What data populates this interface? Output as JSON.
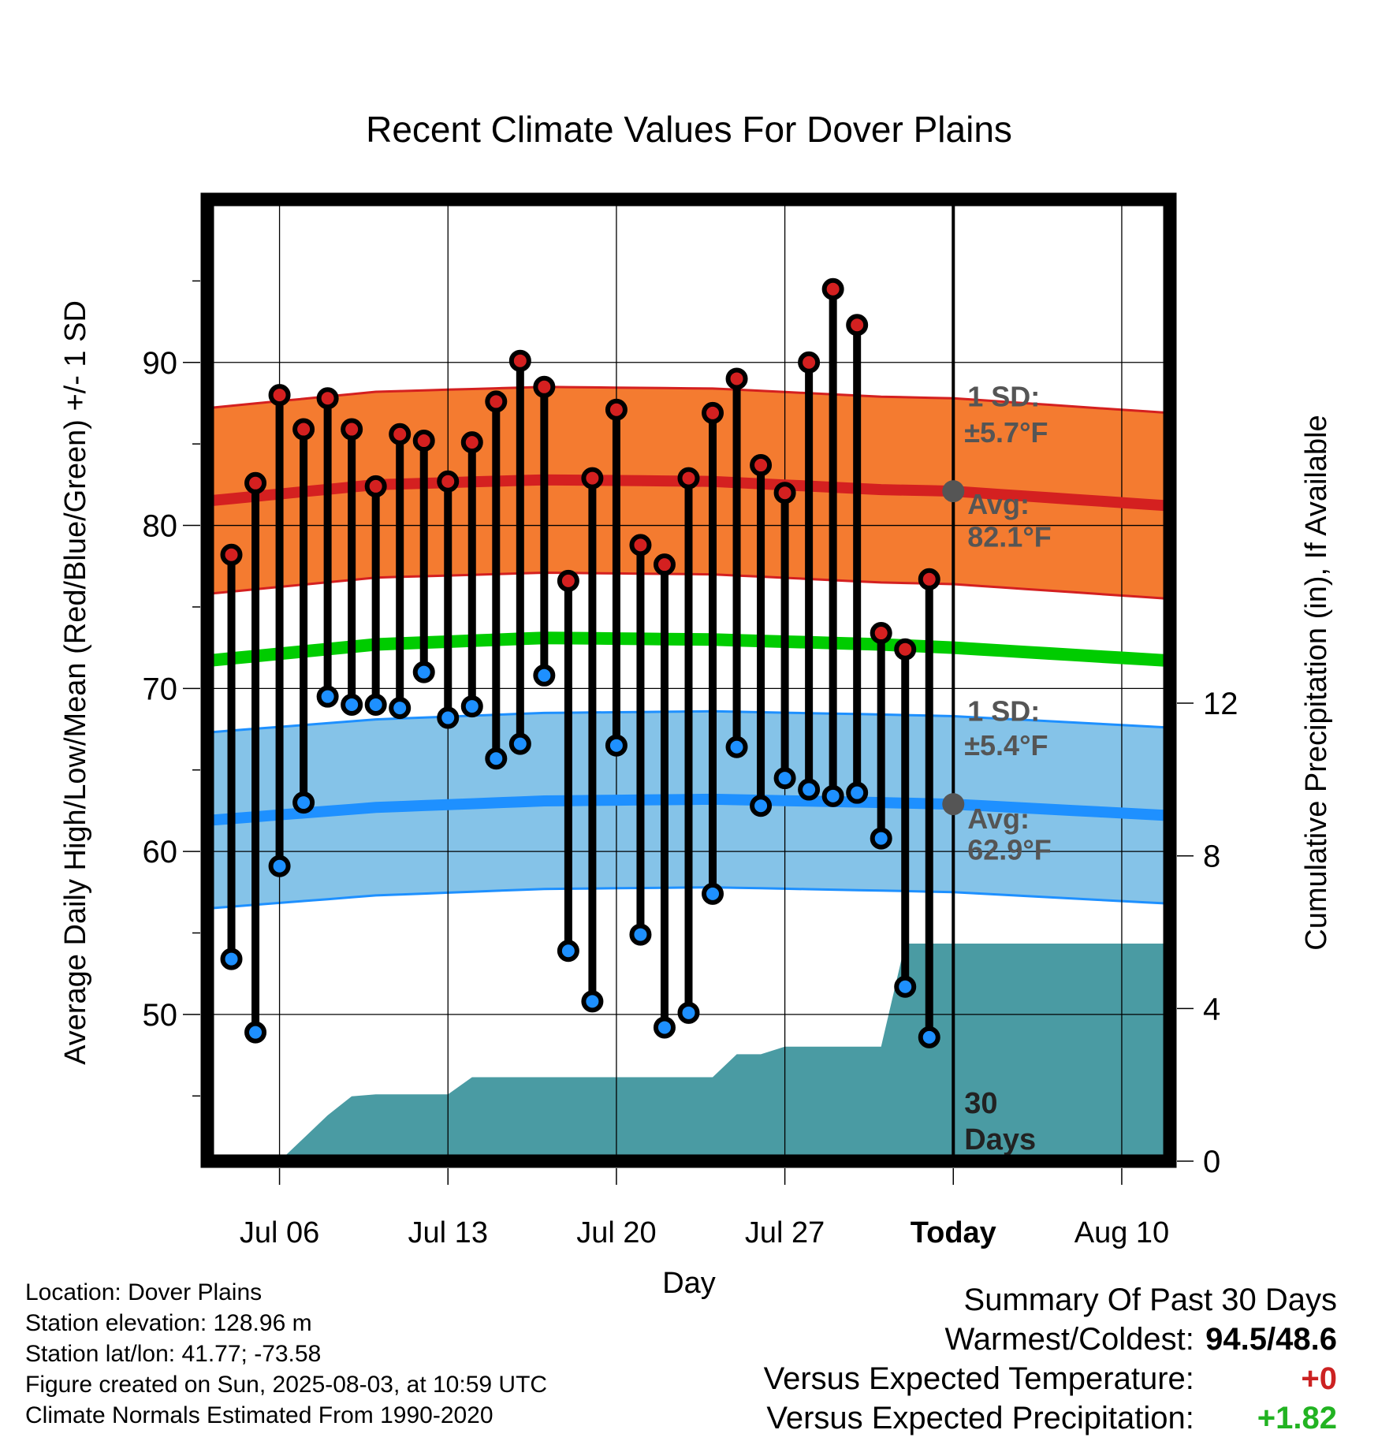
{
  "chart_data": {
    "type": "line",
    "title": "Recent Climate Values For Dover Plains",
    "xlabel": "Day",
    "ylabel_left": "Average Daily High/Low/Mean (Red/Blue/Green) +/- 1 SD",
    "ylabel_right": "Cumulative Precipitation (in), If Available",
    "x_tick_labels": [
      "Jul 06",
      "Jul 13",
      "Jul 20",
      "Jul 27",
      "Today",
      "Aug 10"
    ],
    "y_left_ticks": [
      50,
      60,
      70,
      80,
      90
    ],
    "y_left_range": [
      41,
      100
    ],
    "y_right_ticks": [
      0,
      4,
      8,
      12
    ],
    "y_right_range": [
      0,
      25.2
    ],
    "x_range": [
      "2025-07-03",
      "2025-08-12"
    ],
    "grid": true,
    "normal_high": {
      "dates": [
        "2025-07-03",
        "2025-07-10",
        "2025-07-17",
        "2025-07-24",
        "2025-07-31",
        "2025-08-03",
        "2025-08-12"
      ],
      "mean": [
        81.5,
        82.5,
        82.8,
        82.7,
        82.2,
        82.1,
        81.2
      ],
      "sd": 5.7,
      "sd_label": "1 SD:",
      "sd_value_label": "±5.7°F",
      "avg_label": "Avg:",
      "avg_value_label": "82.1°F"
    },
    "normal_low": {
      "dates": [
        "2025-07-03",
        "2025-07-10",
        "2025-07-17",
        "2025-07-24",
        "2025-07-31",
        "2025-08-03",
        "2025-08-12"
      ],
      "mean": [
        61.9,
        62.7,
        63.1,
        63.2,
        63.0,
        62.9,
        62.2
      ],
      "sd": 5.4,
      "sd_label": "1 SD:",
      "sd_value_label": "±5.4°F",
      "avg_label": "Avg:",
      "avg_value_label": "62.9°F"
    },
    "normal_mean": {
      "dates": [
        "2025-07-03",
        "2025-07-10",
        "2025-07-17",
        "2025-07-24",
        "2025-07-31",
        "2025-08-03",
        "2025-08-12"
      ],
      "values": [
        71.7,
        72.7,
        73.1,
        73.0,
        72.7,
        72.5,
        71.7
      ]
    },
    "daily_obs": [
      {
        "date": "2025-07-04",
        "high": 78.2,
        "low": 53.4
      },
      {
        "date": "2025-07-05",
        "high": 82.6,
        "low": 48.9
      },
      {
        "date": "2025-07-06",
        "high": 88.0,
        "low": 59.1
      },
      {
        "date": "2025-07-07",
        "high": 85.9,
        "low": 63.0
      },
      {
        "date": "2025-07-08",
        "high": 87.8,
        "low": 69.5
      },
      {
        "date": "2025-07-09",
        "high": 85.9,
        "low": 69.0
      },
      {
        "date": "2025-07-10",
        "high": 82.4,
        "low": 69.0
      },
      {
        "date": "2025-07-11",
        "high": 85.6,
        "low": 68.8
      },
      {
        "date": "2025-07-12",
        "high": 85.2,
        "low": 71.0
      },
      {
        "date": "2025-07-13",
        "high": 82.7,
        "low": 68.2
      },
      {
        "date": "2025-07-14",
        "high": 85.1,
        "low": 68.9
      },
      {
        "date": "2025-07-15",
        "high": 87.6,
        "low": 65.7
      },
      {
        "date": "2025-07-16",
        "high": 90.1,
        "low": 66.6
      },
      {
        "date": "2025-07-17",
        "high": 88.5,
        "low": 70.8
      },
      {
        "date": "2025-07-18",
        "high": 76.6,
        "low": 53.9
      },
      {
        "date": "2025-07-19",
        "high": 82.9,
        "low": 50.8
      },
      {
        "date": "2025-07-20",
        "high": 87.1,
        "low": 66.5
      },
      {
        "date": "2025-07-21",
        "high": 78.8,
        "low": 54.9
      },
      {
        "date": "2025-07-22",
        "high": 77.6,
        "low": 49.2
      },
      {
        "date": "2025-07-23",
        "high": 82.9,
        "low": 50.1
      },
      {
        "date": "2025-07-24",
        "high": 86.9,
        "low": 57.4
      },
      {
        "date": "2025-07-25",
        "high": 89.0,
        "low": 66.4
      },
      {
        "date": "2025-07-26",
        "high": 83.7,
        "low": 62.8
      },
      {
        "date": "2025-07-27",
        "high": 82.0,
        "low": 64.5
      },
      {
        "date": "2025-07-28",
        "high": 90.0,
        "low": 63.8
      },
      {
        "date": "2025-07-29",
        "high": 94.5,
        "low": 63.4
      },
      {
        "date": "2025-07-30",
        "high": 92.3,
        "low": 63.6
      },
      {
        "date": "2025-07-31",
        "high": 73.4,
        "low": 60.8
      },
      {
        "date": "2025-08-01",
        "high": 72.4,
        "low": 51.7
      },
      {
        "date": "2025-08-02",
        "high": 76.7,
        "low": 48.6
      }
    ],
    "cumulative_precip": [
      {
        "date": "2025-07-03",
        "value": 0.0
      },
      {
        "date": "2025-07-06",
        "value": 0.0
      },
      {
        "date": "2025-07-08",
        "value": 1.2
      },
      {
        "date": "2025-07-09",
        "value": 1.7
      },
      {
        "date": "2025-07-10",
        "value": 1.75
      },
      {
        "date": "2025-07-13",
        "value": 1.75
      },
      {
        "date": "2025-07-14",
        "value": 2.2
      },
      {
        "date": "2025-07-24",
        "value": 2.2
      },
      {
        "date": "2025-07-25",
        "value": 2.8
      },
      {
        "date": "2025-07-26",
        "value": 2.8
      },
      {
        "date": "2025-07-27",
        "value": 3.0
      },
      {
        "date": "2025-07-31",
        "value": 3.0
      },
      {
        "date": "2025-08-01",
        "value": 5.7
      },
      {
        "date": "2025-08-12",
        "value": 5.7
      }
    ],
    "today": "2025-08-03",
    "today_label_line1": "30",
    "today_label_line2": "Days",
    "colors": {
      "high_band": "#f47b30",
      "high_line": "#d42020",
      "low_band": "#85c3e8",
      "low_line": "#1e90ff",
      "mean_line": "#00cc00",
      "precip_fill": "#4a9ba3",
      "high_marker": "#d42020",
      "low_marker": "#1e90ff",
      "avg_marker": "#555555",
      "annotation_text": "#555555"
    }
  },
  "info": {
    "location": "Location: Dover Plains",
    "elevation": "Station elevation: 128.96 m",
    "latlon": "Station lat/lon: 41.77; -73.58",
    "created": "Figure created on Sun, 2025-08-03, at 10:59 UTC",
    "normals": "Climate Normals Estimated From 1990-2020"
  },
  "summary": {
    "title": "Summary Of Past 30 Days",
    "warmest_label": "Warmest/Coldest:",
    "warmest_value": "94.5/48.6",
    "temp_label": "Versus Expected Temperature:",
    "temp_value": "+0",
    "precip_label": "Versus Expected Precipitation:",
    "precip_value": "+1.82"
  }
}
